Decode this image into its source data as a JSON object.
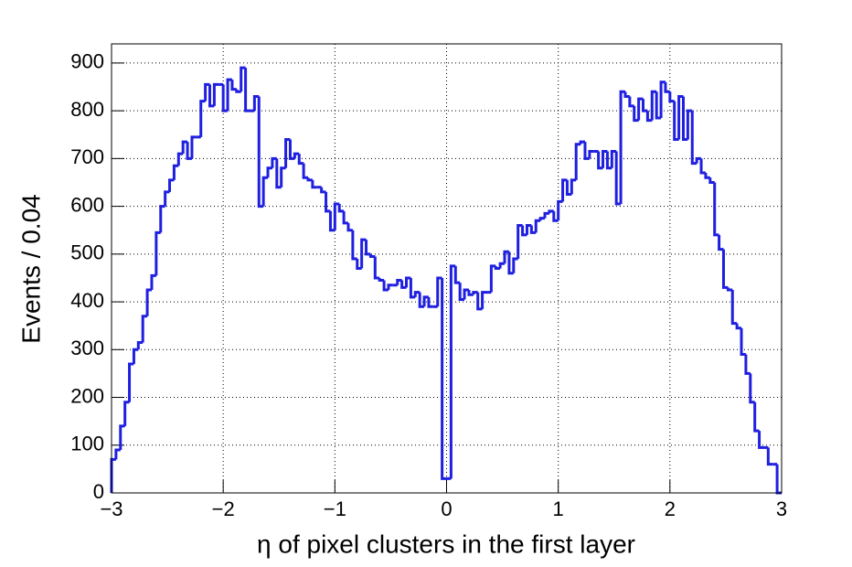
{
  "chart_data": {
    "type": "histogram",
    "x_label": "η of pixel clusters in the first layer",
    "y_label": "Events / 0.04",
    "color": "#1f1fe0",
    "grid": true,
    "xlim": [
      -3,
      3
    ],
    "ylim": [
      0,
      940
    ],
    "xticks": [
      {
        "value": -3,
        "label": "−3"
      },
      {
        "value": -2,
        "label": "−2"
      },
      {
        "value": -1,
        "label": "−1"
      },
      0,
      1,
      2,
      3
    ],
    "yticks": [
      0,
      100,
      200,
      300,
      400,
      500,
      600,
      700,
      800,
      900
    ],
    "bins": [
      -3,
      -2.96,
      -2.92,
      -2.88,
      -2.84,
      -2.8,
      -2.76,
      -2.72,
      -2.68,
      -2.64,
      -2.6,
      -2.56,
      -2.52,
      -2.48,
      -2.44,
      -2.4,
      -2.36,
      -2.32,
      -2.28,
      -2.24,
      -2.2,
      -2.16,
      -2.12,
      -2.08,
      -2.04,
      -2,
      -1.96,
      -1.92,
      -1.88,
      -1.84,
      -1.8,
      -1.76,
      -1.72,
      -1.68,
      -1.64,
      -1.6,
      -1.56,
      -1.52,
      -1.48,
      -1.44,
      -1.4,
      -1.36,
      -1.32,
      -1.28,
      -1.24,
      -1.2,
      -1.16,
      -1.12,
      -1.08,
      -1.04,
      -1,
      -0.96,
      -0.92,
      -0.88,
      -0.84,
      -0.8,
      -0.76,
      -0.72,
      -0.68,
      -0.64,
      -0.6,
      -0.56,
      -0.52,
      -0.48,
      -0.44,
      -0.4,
      -0.36,
      -0.32,
      -0.28,
      -0.24,
      -0.2,
      -0.16,
      -0.12,
      -0.08,
      -0.04,
      0,
      0.04,
      0.08,
      0.12,
      0.16,
      0.2,
      0.24,
      0.28,
      0.32,
      0.36,
      0.4,
      0.44,
      0.48,
      0.52,
      0.56,
      0.6,
      0.64,
      0.68,
      0.72,
      0.76,
      0.8,
      0.84,
      0.88,
      0.92,
      0.96,
      1,
      1.04,
      1.08,
      1.12,
      1.16,
      1.2,
      1.24,
      1.28,
      1.32,
      1.36,
      1.4,
      1.44,
      1.48,
      1.52,
      1.56,
      1.6,
      1.64,
      1.68,
      1.72,
      1.76,
      1.8,
      1.84,
      1.88,
      1.92,
      1.96,
      2,
      2.04,
      2.08,
      2.12,
      2.16,
      2.2,
      2.24,
      2.28,
      2.32,
      2.36,
      2.4,
      2.44,
      2.48,
      2.52,
      2.56,
      2.6,
      2.64,
      2.68,
      2.72,
      2.76,
      2.8,
      2.84,
      2.88,
      2.92,
      2.96,
      3
    ],
    "values": [
      70,
      90,
      140,
      190,
      270,
      300,
      315,
      370,
      425,
      455,
      545,
      600,
      630,
      655,
      685,
      710,
      735,
      700,
      745,
      745,
      820,
      855,
      810,
      855,
      855,
      800,
      865,
      845,
      840,
      890,
      800,
      800,
      830,
      600,
      660,
      680,
      700,
      640,
      680,
      740,
      700,
      710,
      690,
      660,
      655,
      640,
      640,
      630,
      590,
      550,
      605,
      590,
      565,
      550,
      490,
      470,
      530,
      500,
      495,
      450,
      445,
      425,
      435,
      435,
      445,
      430,
      450,
      410,
      420,
      390,
      410,
      390,
      390,
      450,
      30,
      30,
      475,
      440,
      405,
      425,
      415,
      420,
      385,
      420,
      420,
      475,
      470,
      480,
      505,
      460,
      490,
      560,
      540,
      560,
      545,
      570,
      575,
      585,
      590,
      570,
      610,
      655,
      625,
      655,
      730,
      735,
      700,
      715,
      715,
      680,
      715,
      680,
      715,
      605,
      840,
      830,
      810,
      780,
      825,
      800,
      780,
      840,
      785,
      860,
      840,
      820,
      740,
      830,
      740,
      800,
      690,
      700,
      670,
      660,
      650,
      540,
      510,
      430,
      425,
      355,
      345,
      290,
      250,
      190,
      130,
      95,
      95,
      60,
      60,
      0
    ]
  }
}
